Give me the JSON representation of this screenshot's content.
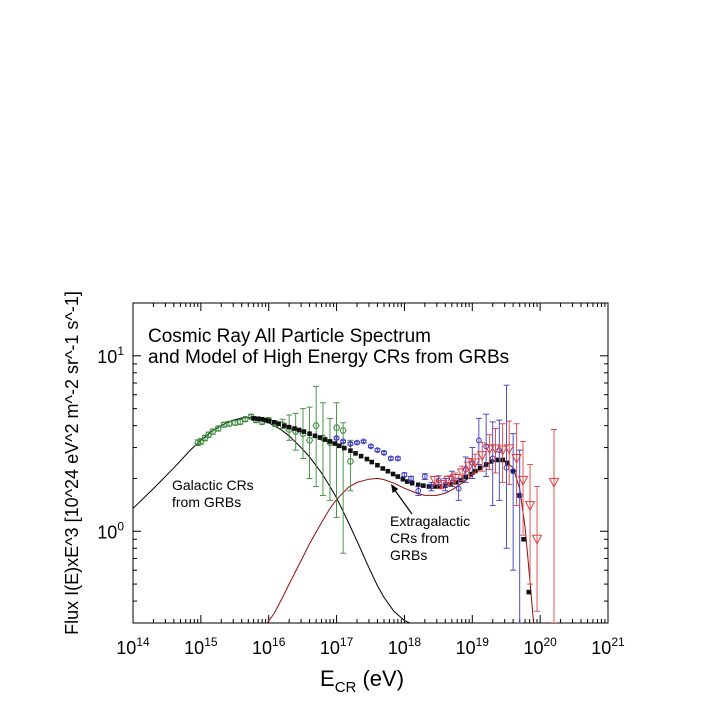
{
  "chart_data": {
    "type": "scatter",
    "title": "Cosmic Ray All Particle Spectrum",
    "subtitle": "and Model of High Energy CRs from GRBs",
    "xlabel_main": "E",
    "xlabel_sub": "CR",
    "xlabel_unit": " (eV)",
    "ylabel": "Flux I(E)xE^3 [10^24 eV^2 m^-2 sr^-1 s^-1]",
    "x_scale": "log",
    "y_scale": "log",
    "xlim": [
      100000000000000.0,
      1e+21
    ],
    "ylim": [
      0.3,
      20
    ],
    "grid": false,
    "x_ticks": [
      {
        "base": "10",
        "exp": "14"
      },
      {
        "base": "10",
        "exp": "15"
      },
      {
        "base": "10",
        "exp": "16"
      },
      {
        "base": "10",
        "exp": "17"
      },
      {
        "base": "10",
        "exp": "18"
      },
      {
        "base": "10",
        "exp": "19"
      },
      {
        "base": "10",
        "exp": "20"
      },
      {
        "base": "10",
        "exp": "21"
      }
    ],
    "y_ticks": [
      {
        "base": "10",
        "exp": "0",
        "value": 1
      },
      {
        "base": "10",
        "exp": "1",
        "value": 10
      }
    ],
    "annotations": {
      "galactic": [
        "Galactic CRs",
        "from GRBs"
      ],
      "extragalactic": [
        "Extragalactic",
        "CRs from",
        "GRBs"
      ]
    },
    "colors": {
      "green": "#3a8a3a",
      "blue": "#3a3ac0",
      "red": "#e04040",
      "model_total": "#111111",
      "model_extragalactic": "#8b1010",
      "model_galactic": "#000000"
    },
    "series": [
      {
        "marker": "hexagon",
        "color": "green",
        "x": [
          900000000000000.0,
          1000000000000000.0,
          1150000000000000.0,
          1300000000000000.0,
          1500000000000000.0,
          1800000000000000.0,
          2200000000000000.0,
          2600000000000000.0,
          3200000000000000.0,
          3800000000000000.0,
          4500000000000000.0,
          5500000000000000.0,
          6500000000000000.0,
          8000000000000000.0,
          1e+16,
          1.25e+16,
          1.6e+16,
          2e+16,
          2.5e+16,
          3.2e+16,
          4e+16,
          5e+16,
          6.3e+16,
          8e+16,
          1e+17,
          1.25e+17,
          1.6e+17
        ],
        "y": [
          3.2,
          3.25,
          3.4,
          3.55,
          3.7,
          3.85,
          4.05,
          4.1,
          4.15,
          4.2,
          4.35,
          4.5,
          4.3,
          4.2,
          4.3,
          4.1,
          4.05,
          3.8,
          3.7,
          3.6,
          3.3,
          4.0,
          3.4,
          3.2,
          3.9,
          3.75,
          2.5
        ],
        "err_lo": [
          0.12,
          0.12,
          0.12,
          0.12,
          0.12,
          0.12,
          0.12,
          0.12,
          0.12,
          0.12,
          0.12,
          0.12,
          0.12,
          0.12,
          0.12,
          0.15,
          0.2,
          0.5,
          0.8,
          1.0,
          1.3,
          2.2,
          1.8,
          1.7,
          2.7,
          3.0,
          0.8
        ],
        "err_hi": [
          0.12,
          0.12,
          0.12,
          0.12,
          0.12,
          0.12,
          0.12,
          0.12,
          0.12,
          0.12,
          0.12,
          0.12,
          0.12,
          0.12,
          0.12,
          0.15,
          0.3,
          0.8,
          1.0,
          1.4,
          1.8,
          2.7,
          2.0,
          1.2,
          1.5,
          0.4,
          0.8
        ]
      },
      {
        "marker": "filled-square",
        "color": "model_total",
        "x": [
          6000000000000000.0,
          7000000000000000.0,
          8000000000000000.0,
          9000000000000000.0,
          1e+16,
          1.2e+16,
          1.4e+16,
          1.7e+16,
          2e+16,
          2.4e+16,
          2.8e+16,
          3.3e+16,
          4e+16,
          4.8e+16,
          5.7e+16,
          6.8e+16,
          8e+16,
          9.5e+16,
          1.1e+17,
          1.3e+17,
          1.6e+17,
          1.9e+17,
          2.3e+17,
          2.8e+17,
          3.3e+17,
          4e+17,
          4.8e+17,
          5.7e+17,
          6.8e+17,
          8e+17,
          9.5e+17,
          1.1e+18,
          1.3e+18,
          1.6e+18,
          1.9e+18,
          2.3e+18,
          2.8e+18,
          3.3e+18,
          4e+18,
          4.8e+18,
          5.7e+18,
          6.8e+18,
          8e+18,
          9.5e+18,
          1.1e+19,
          1.3e+19,
          1.6e+19,
          1.9e+19,
          2.3e+19,
          2.8e+19,
          3.3e+19,
          4e+19,
          4.8e+19,
          5.7e+19,
          6.8e+19,
          8e+19
        ],
        "y": [
          4.4,
          4.38,
          4.35,
          4.3,
          4.25,
          4.18,
          4.1,
          4.0,
          3.92,
          3.85,
          3.78,
          3.7,
          3.6,
          3.5,
          3.42,
          3.33,
          3.25,
          3.16,
          3.07,
          2.98,
          2.88,
          2.78,
          2.68,
          2.58,
          2.48,
          2.38,
          2.28,
          2.2,
          2.12,
          2.05,
          1.98,
          1.92,
          1.88,
          1.84,
          1.82,
          1.8,
          1.8,
          1.8,
          1.82,
          1.85,
          1.9,
          1.96,
          2.04,
          2.12,
          2.2,
          2.3,
          2.4,
          2.5,
          2.55,
          2.55,
          2.45,
          2.2,
          1.6,
          0.9,
          0.45,
          0.28
        ]
      },
      {
        "marker": "circle",
        "color": "blue",
        "x": [
          1e+17,
          1.25e+17,
          1.6e+17,
          2e+17,
          2.5e+17,
          3.2e+17,
          4e+17,
          5e+17,
          6.3e+17,
          8e+17,
          1e+18,
          1.25e+18,
          1.6e+18,
          2e+18,
          2.5e+18,
          3.2e+18,
          4e+18,
          5e+18,
          6.3e+18,
          8e+18,
          1e+19,
          1.25e+19,
          1.6e+19,
          2e+19,
          2.5e+19,
          3.2e+19,
          4e+19,
          5e+19
        ],
        "y": [
          3.4,
          3.25,
          3.15,
          3.2,
          3.25,
          3.05,
          2.9,
          2.8,
          2.6,
          2.6,
          2.1,
          2.0,
          1.7,
          2.05,
          1.8,
          1.95,
          1.85,
          2.0,
          1.75,
          2.25,
          2.45,
          3.3,
          3.05,
          2.6,
          2.9,
          2.3,
          2.2,
          1.6
        ],
        "err_lo": [
          0.05,
          0.05,
          0.05,
          0.05,
          0.05,
          0.05,
          0.05,
          0.05,
          0.05,
          0.05,
          0.05,
          0.05,
          0.1,
          0.08,
          0.1,
          0.12,
          0.15,
          0.2,
          0.25,
          0.35,
          0.45,
          0.9,
          1.0,
          1.2,
          1.4,
          1.5,
          1.6,
          1.3
        ],
        "err_hi": [
          0.05,
          0.05,
          0.05,
          0.05,
          0.05,
          0.05,
          0.05,
          0.05,
          0.05,
          0.05,
          0.05,
          0.05,
          0.1,
          0.08,
          0.1,
          0.12,
          0.15,
          0.2,
          0.25,
          0.4,
          0.55,
          1.1,
          1.6,
          1.6,
          1.4,
          4.5,
          1.4,
          1.3
        ]
      },
      {
        "marker": "triangle-down",
        "color": "red",
        "x": [
          2.8e+18,
          3.5e+18,
          4.5e+18,
          5.6e+18,
          7.1e+18,
          9e+18,
          1.1e+19,
          1.4e+19,
          1.8e+19,
          2.2e+19,
          2.8e+19,
          3.5e+19,
          4.5e+19,
          5.6e+19,
          7.1e+19,
          9e+19,
          1.6e+20
        ],
        "y": [
          1.95,
          1.85,
          1.95,
          2.0,
          2.15,
          2.35,
          2.45,
          2.7,
          2.95,
          2.95,
          2.9,
          2.95,
          2.6,
          1.95,
          1.4,
          0.9,
          1.9
        ],
        "err_lo": [
          0.1,
          0.1,
          0.12,
          0.15,
          0.2,
          0.25,
          0.3,
          0.5,
          0.7,
          0.8,
          1.0,
          1.1,
          1.2,
          1.0,
          0.9,
          0.55,
          1.6
        ],
        "err_hi": [
          0.1,
          0.1,
          0.12,
          0.15,
          0.2,
          0.25,
          0.3,
          0.5,
          0.6,
          0.9,
          1.2,
          1.3,
          1.5,
          1.3,
          1.0,
          0.9,
          1.9
        ]
      }
    ],
    "models": [
      {
        "color": "model_galactic",
        "x": [
          100000000000000.0,
          200000000000000.0,
          400000000000000.0,
          700000000000000.0,
          1000000000000000.0,
          1500000000000000.0,
          2000000000000000.0,
          3000000000000000.0,
          4000000000000000.0,
          5000000000000000.0,
          6000000000000000.0,
          8000000000000000.0,
          1e+16,
          1.5e+16,
          2e+16,
          3e+16,
          4e+16,
          6e+16,
          8e+16,
          1e+17,
          1.5e+17,
          2e+17,
          3e+17,
          4e+17,
          5e+17,
          7e+17,
          1e+18,
          1.2e+18,
          1.6e+18
        ],
        "y": [
          1.35,
          1.75,
          2.3,
          2.9,
          3.3,
          3.75,
          4.0,
          4.3,
          4.42,
          4.45,
          4.42,
          4.3,
          4.15,
          3.8,
          3.5,
          3.0,
          2.65,
          2.15,
          1.8,
          1.55,
          1.12,
          0.88,
          0.62,
          0.49,
          0.42,
          0.35,
          0.31,
          0.3,
          0.29
        ]
      },
      {
        "color": "model_extragalactic",
        "x": [
          9500000000000000.0,
          1.2e+16,
          1.6e+16,
          2e+16,
          3e+16,
          4e+16,
          6e+16,
          8e+16,
          1e+17,
          1.5e+17,
          2e+17,
          3e+17,
          4e+17,
          5e+17,
          7e+17,
          1e+18,
          1.5e+18,
          2e+18,
          3e+18,
          4e+18,
          5e+18,
          7e+18,
          1e+19,
          1.5e+19,
          2e+19,
          3e+19,
          4e+19,
          5e+19,
          6e+19,
          7e+19,
          8e+19
        ],
        "y": [
          0.3,
          0.34,
          0.42,
          0.5,
          0.68,
          0.85,
          1.12,
          1.35,
          1.52,
          1.78,
          1.9,
          1.98,
          2.0,
          1.97,
          1.88,
          1.76,
          1.65,
          1.6,
          1.6,
          1.65,
          1.72,
          1.88,
          2.08,
          2.35,
          2.5,
          2.52,
          2.3,
          1.75,
          1.05,
          0.55,
          0.3
        ]
      }
    ]
  }
}
